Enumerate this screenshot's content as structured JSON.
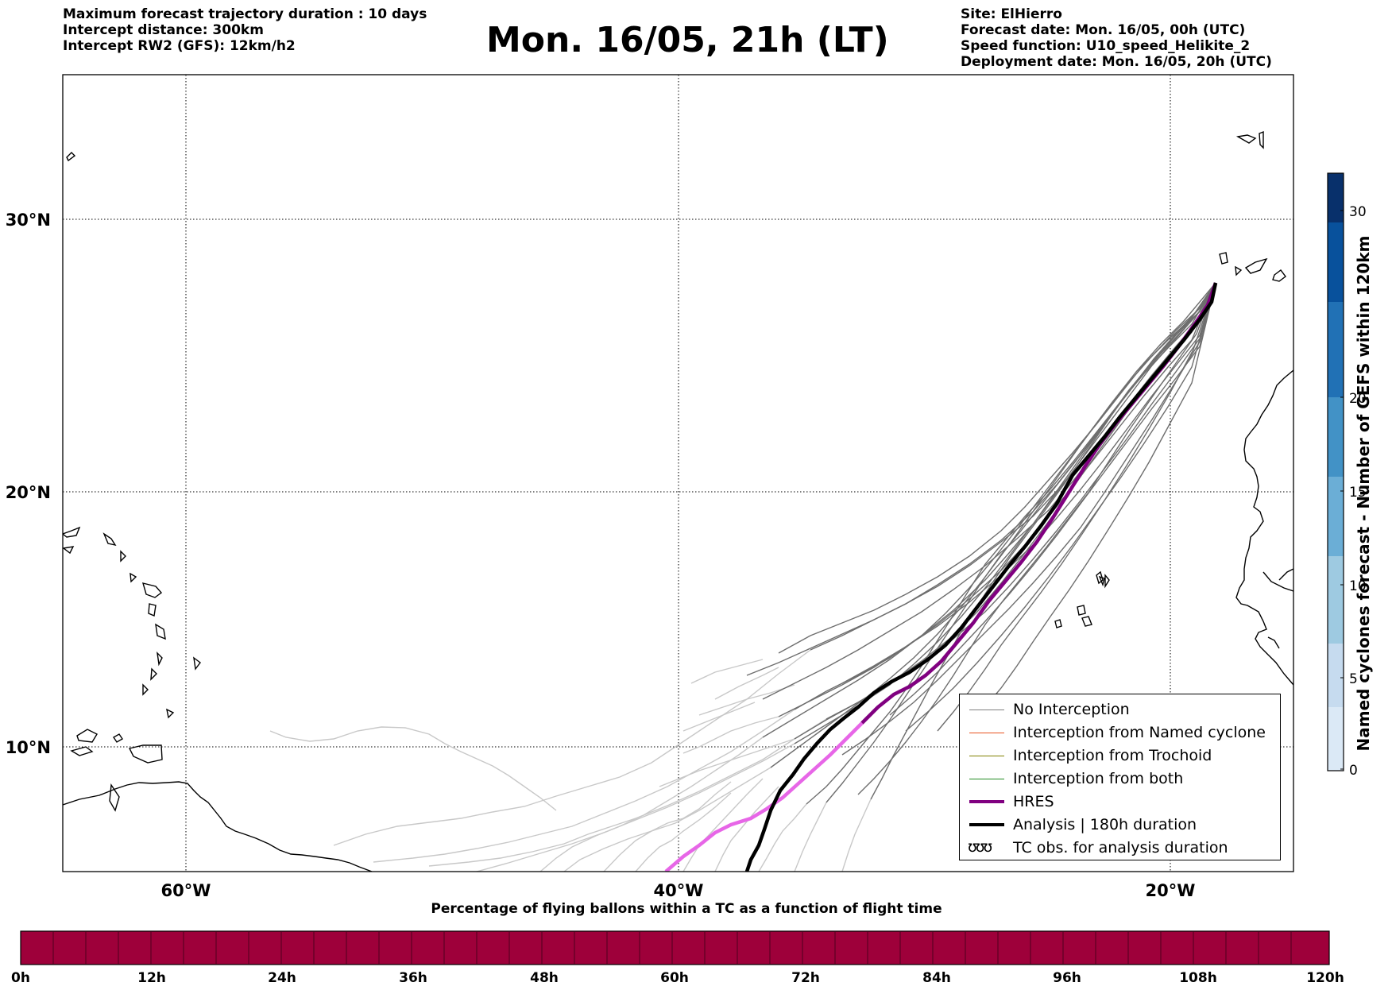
{
  "header": {
    "left_lines": [
      "Maximum forecast trajectory duration : 10 days",
      "Intercept distance: 300km",
      "Intercept RW2 (GFS):  12km/h2"
    ],
    "title": "Mon. 16/05, 21h (LT)",
    "right_lines": [
      "Site: ElHierro",
      "Forecast date: Mon. 16/05, 00h (UTC)",
      "Speed function: U10_speed_Helikite_2",
      "Deployment date: Mon. 16/05, 20h (UTC)"
    ]
  },
  "map": {
    "lon_range": [
      -65,
      -15
    ],
    "lat_range": [
      5.4,
      34.7
    ],
    "parallels": [
      {
        "lat": 30,
        "label": "30°N"
      },
      {
        "lat": 20,
        "label": "20°N"
      },
      {
        "lat": 10,
        "label": "10°N"
      }
    ],
    "meridians": [
      {
        "lon": -60,
        "label": "60°W"
      },
      {
        "lon": -40,
        "label": "40°W"
      },
      {
        "lon": -20,
        "label": "20°W"
      }
    ],
    "launch_site": {
      "lon": -18.2,
      "lat": 27.7
    }
  },
  "legend": {
    "placement": "lower-right",
    "items": [
      {
        "label": "No Interception",
        "color": "#7f7f7f",
        "kind": "thin"
      },
      {
        "label": "Interception from Named cyclone",
        "color": "#e8531f",
        "kind": "thin"
      },
      {
        "label": "Interception from Trochoid",
        "color": "#808000",
        "kind": "thin"
      },
      {
        "label": "Interception from both",
        "color": "#228b22",
        "kind": "thin"
      },
      {
        "label": "HRES",
        "color": "#800080",
        "kind": "thick"
      },
      {
        "label": "Analysis | 180h duration",
        "color": "#000000",
        "kind": "thick"
      },
      {
        "label": "TC obs. for analysis duration",
        "color": "#000000",
        "kind": "symbol",
        "symbol": "ʊʊʊ"
      }
    ]
  },
  "colorbar_right": {
    "label": "Named cyclones forecast - Number of GEFS within 120km",
    "ticks": [
      0,
      5,
      10,
      15,
      20,
      30
    ],
    "vmin": 0,
    "vmax": 32,
    "colors": [
      "#dbe9f6",
      "#c6dbef",
      "#9ecae1",
      "#6baed6",
      "#4292c6",
      "#2171b5",
      "#08519c",
      "#08306b"
    ]
  },
  "colorbar_bottom": {
    "title": "Percentage of flying ballons within a TC as a function of flight time",
    "ticks": [
      "0h",
      "12h",
      "24h",
      "36h",
      "48h",
      "60h",
      "72h",
      "84h",
      "96h",
      "108h",
      "120h"
    ],
    "fill_color": "#9e003a"
  }
}
